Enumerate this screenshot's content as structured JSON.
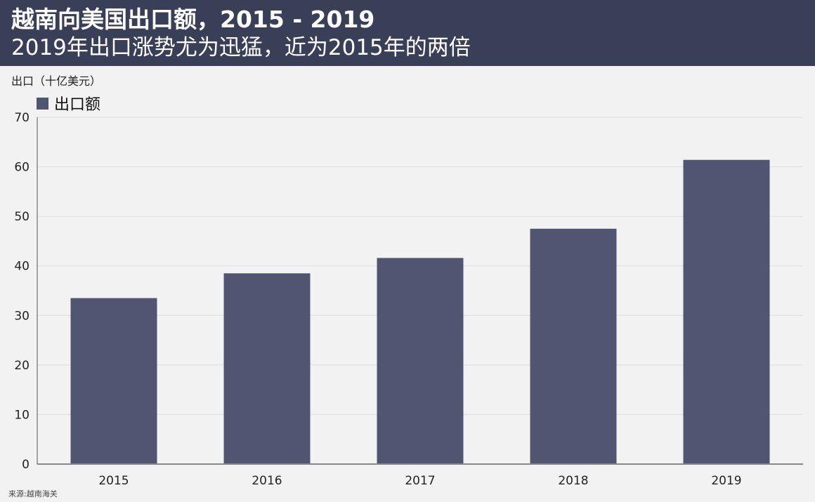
{
  "header": {
    "title": "越南向美国出口额，2015 - 2019",
    "subtitle": "2019年出口涨势尤为迅猛，近为2015年的两倍"
  },
  "colors": {
    "header_bg": "#3a3f58",
    "bar": "#525572",
    "background": "#f2f2f2",
    "grid": "#dcdcdc"
  },
  "chart_data": {
    "type": "bar",
    "title": "越南向美国出口额，2015 - 2019",
    "ylabel": "出口（十亿美元）",
    "categories": [
      "2015",
      "2016",
      "2017",
      "2018",
      "2019"
    ],
    "series": [
      {
        "name": "出口额",
        "values": [
          33.5,
          38.5,
          41.6,
          47.5,
          61.4
        ]
      }
    ],
    "ylim": [
      0,
      70
    ],
    "yticks": [
      0,
      10,
      20,
      30,
      40,
      50,
      60,
      70
    ],
    "grid": true,
    "legend": "top-left"
  },
  "source": "来源:越南海关"
}
